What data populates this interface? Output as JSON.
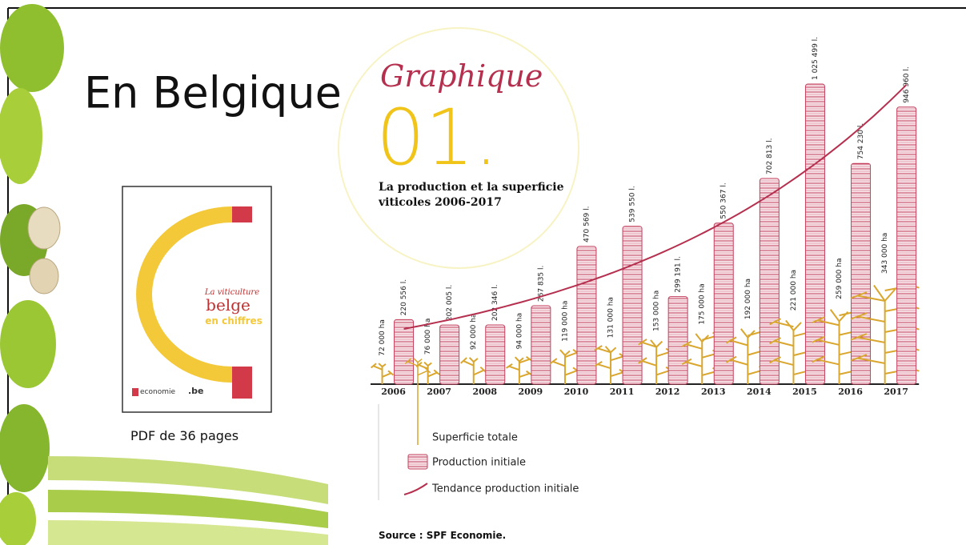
{
  "slide": {
    "title": "En Belgique",
    "caption": "PDF de 36 pages",
    "cover": {
      "line1": "La viticulture",
      "line2": "belge",
      "line3": "en chiffres",
      "brand": "economie",
      "domain": ".be"
    }
  },
  "chart_data": {
    "type": "bar",
    "title": "Graphique",
    "number": "01.",
    "subtitle": "La production et la superficie viticoles 2006-2017",
    "categories": [
      "2006",
      "2007",
      "2008",
      "2009",
      "2010",
      "2011",
      "2012",
      "2013",
      "2014",
      "2015",
      "2016",
      "2017"
    ],
    "series": [
      {
        "name": "Superficie totale",
        "color": "#d9a62e",
        "values": [
          72000,
          76000,
          92000,
          94000,
          119000,
          131000,
          153000,
          175000,
          192000,
          221000,
          259000,
          343000
        ],
        "value_labels": [
          "72 000 ha",
          "76 000 ha",
          "92 000 ha",
          "94 000 ha",
          "119 000 ha",
          "131 000 ha",
          "153 000 ha",
          "175 000 ha",
          "192 000 ha",
          "221 000 ha",
          "259 000 ha",
          "343 000 ha"
        ]
      },
      {
        "name": "Production initiale",
        "color": "#c4405e",
        "values": [
          220556,
          202005,
          202346,
          267835,
          470569,
          539550,
          299191,
          550367,
          702813,
          1025499,
          754230,
          946960
        ],
        "value_labels": [
          "220 556 l.",
          "202 005 l.",
          "202 346 l.",
          "267 835 l.",
          "470 569 l.",
          "539 550 l.",
          "299 191 l.",
          "550 367 l.",
          "702 813 l.",
          "1 025 499 l.",
          "754 230 l.",
          "946 960 l."
        ]
      }
    ],
    "trend": {
      "name": "Tendance production initiale",
      "color": "#b5304f"
    },
    "source": "Source : SPF Economie."
  }
}
